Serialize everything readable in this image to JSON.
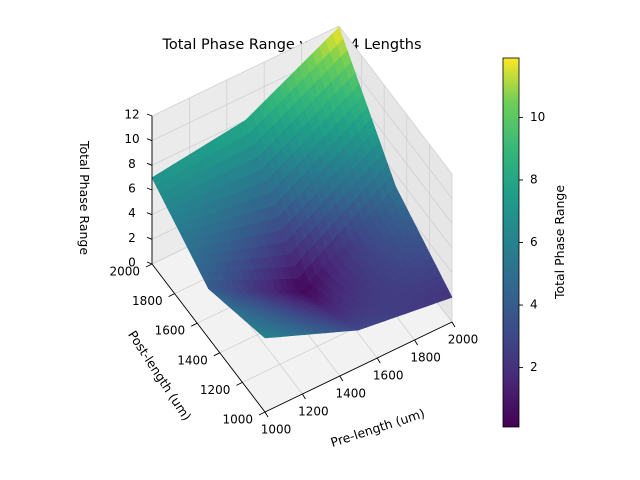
{
  "chart_data": {
    "type": "surface3d",
    "title": "Total Phase Range vs YVO4 Lengths",
    "xlabel": "Pre-length (um)",
    "ylabel": "Post-length (um)",
    "zlabel": "Total Phase Range",
    "colorbar_label": "Total Phase Range",
    "colormap": "viridis",
    "xlim": [
      1000,
      2000
    ],
    "ylim": [
      1000,
      2000
    ],
    "zlim": [
      0,
      12
    ],
    "x_ticks": [
      "1000",
      "1200",
      "1400",
      "1600",
      "1800",
      "2000"
    ],
    "y_ticks": [
      "1000",
      "1200",
      "1400",
      "1600",
      "1800",
      "2000"
    ],
    "z_ticks": [
      "0",
      "2",
      "4",
      "6",
      "8",
      "10",
      "12"
    ],
    "colorbar_ticks": [
      "2",
      "4",
      "6",
      "8",
      "10"
    ],
    "colorbar_range": [
      0.1,
      11.9
    ],
    "surface_samples": {
      "x": [
        1000,
        1500,
        2000
      ],
      "y": [
        1000,
        1500,
        2000
      ],
      "z": [
        [
          6.0,
          4.0,
          7.0
        ],
        [
          3.0,
          0.2,
          8.0
        ],
        [
          2.0,
          5.0,
          11.9
        ]
      ]
    }
  }
}
